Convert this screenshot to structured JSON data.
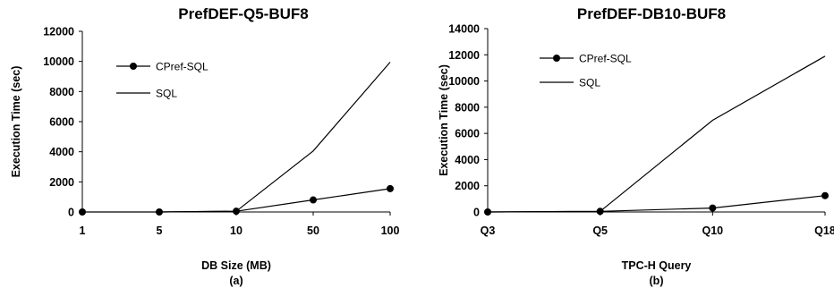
{
  "chart_data": [
    {
      "type": "line",
      "title": "PrefDEF-Q5-BUF8",
      "xlabel": "DB Size (MB)",
      "ylabel": "Execution Time (sec)",
      "caption": "(a)",
      "categories": [
        "1",
        "5",
        "10",
        "50",
        "100"
      ],
      "ylim": [
        0,
        12000
      ],
      "yticks": [
        0,
        2000,
        4000,
        6000,
        8000,
        10000,
        12000
      ],
      "ytick_labels": [
        "0",
        "2000",
        "4000",
        "6000",
        "8000",
        "10000",
        "12000"
      ],
      "legend_position": "upper-left",
      "series": [
        {
          "name": "CPref-SQL",
          "marker": "circle",
          "values": [
            0,
            0,
            50,
            800,
            1550
          ]
        },
        {
          "name": "SQL",
          "marker": "none",
          "values": [
            null,
            0,
            50,
            4050,
            9950
          ]
        }
      ]
    },
    {
      "type": "line",
      "title": "PrefDEF-DB10-BUF8",
      "xlabel": "TPC-H Query",
      "ylabel": "Execution Time (sec)",
      "caption": "(b)",
      "categories": [
        "Q3",
        "Q5",
        "Q10",
        "Q18"
      ],
      "ylim": [
        0,
        14000
      ],
      "yticks": [
        0,
        2000,
        4000,
        6000,
        8000,
        10000,
        12000,
        14000
      ],
      "ytick_labels": [
        "0",
        "2000",
        "4000",
        "6000",
        "8000",
        "10000",
        "12000",
        "14000"
      ],
      "legend_position": "upper-left",
      "series": [
        {
          "name": "CPref-SQL",
          "marker": "circle",
          "values": [
            0,
            50,
            300,
            1250
          ]
        },
        {
          "name": "SQL",
          "marker": "none",
          "values": [
            0,
            50,
            7000,
            11900
          ]
        }
      ]
    }
  ]
}
